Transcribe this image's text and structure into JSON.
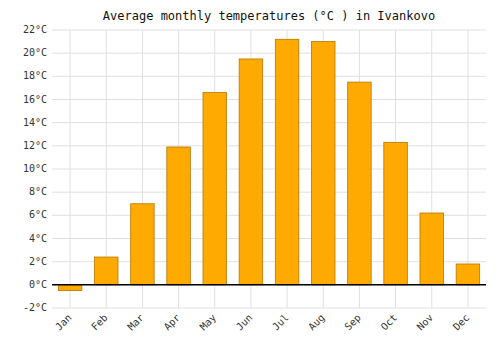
{
  "chart_data": {
    "type": "bar",
    "title": "Average monthly temperatures (°C ) in Ivankovo",
    "categories": [
      "Jan",
      "Feb",
      "Mar",
      "Apr",
      "May",
      "Jun",
      "Jul",
      "Aug",
      "Sep",
      "Oct",
      "Nov",
      "Dec"
    ],
    "values": [
      -0.5,
      2.4,
      7.0,
      11.9,
      16.6,
      19.5,
      21.2,
      21.0,
      17.5,
      12.3,
      6.2,
      1.8
    ],
    "color": "#FFAA00",
    "ylim": [
      -2,
      22
    ],
    "yticks": [
      {
        "value": -2,
        "label": "-2°C"
      },
      {
        "value": 0,
        "label": "0°C"
      },
      {
        "value": 2,
        "label": "2°C"
      },
      {
        "value": 4,
        "label": "4°C"
      },
      {
        "value": 6,
        "label": "6°C"
      },
      {
        "value": 8,
        "label": "8°C"
      },
      {
        "value": 10,
        "label": "10°C"
      },
      {
        "value": 12,
        "label": "12°C"
      },
      {
        "value": 14,
        "label": "14°C"
      },
      {
        "value": 16,
        "label": "16°C"
      },
      {
        "value": 18,
        "label": "18°C"
      },
      {
        "value": 20,
        "label": "20°C"
      },
      {
        "value": 22,
        "label": "22°C"
      }
    ],
    "grid": true
  }
}
